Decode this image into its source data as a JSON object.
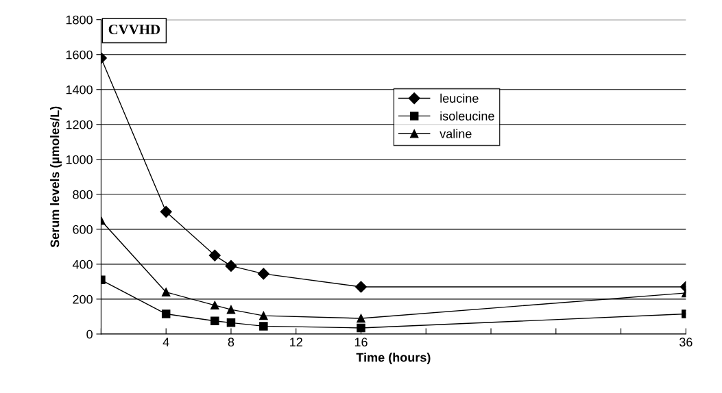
{
  "chart_data": {
    "type": "line",
    "x": [
      0,
      4,
      7,
      8,
      10,
      16,
      36
    ],
    "series": [
      {
        "name": "leucine",
        "color": "#000000",
        "marker": "diamond",
        "values": [
          1580,
          700,
          450,
          390,
          345,
          270,
          270
        ]
      },
      {
        "name": "isoleucine",
        "color": "#000000",
        "marker": "square",
        "values": [
          310,
          115,
          75,
          65,
          45,
          35,
          115
        ]
      },
      {
        "name": "valine",
        "color": "#000000",
        "marker": "triangle",
        "values": [
          650,
          240,
          165,
          140,
          105,
          90,
          235
        ]
      }
    ],
    "xlabel": "Time (hours)",
    "ylabel": "Serum levels (µmoles/L)",
    "xlim": [
      0,
      36
    ],
    "xticks": [
      {
        "value": 0,
        "label": null
      },
      4,
      8,
      12,
      16,
      {
        "value": 20,
        "label": null
      },
      {
        "value": 24,
        "label": null
      },
      {
        "value": 28,
        "label": null
      },
      {
        "value": 32,
        "label": null
      },
      36
    ],
    "ylim": [
      0,
      1800
    ],
    "yticks": [
      0,
      200,
      400,
      600,
      800,
      1000,
      1200,
      1400,
      1600,
      1800
    ],
    "annotations": [
      "CVVHD"
    ],
    "grid": "y",
    "legend": "top right",
    "line_style": "solid"
  }
}
